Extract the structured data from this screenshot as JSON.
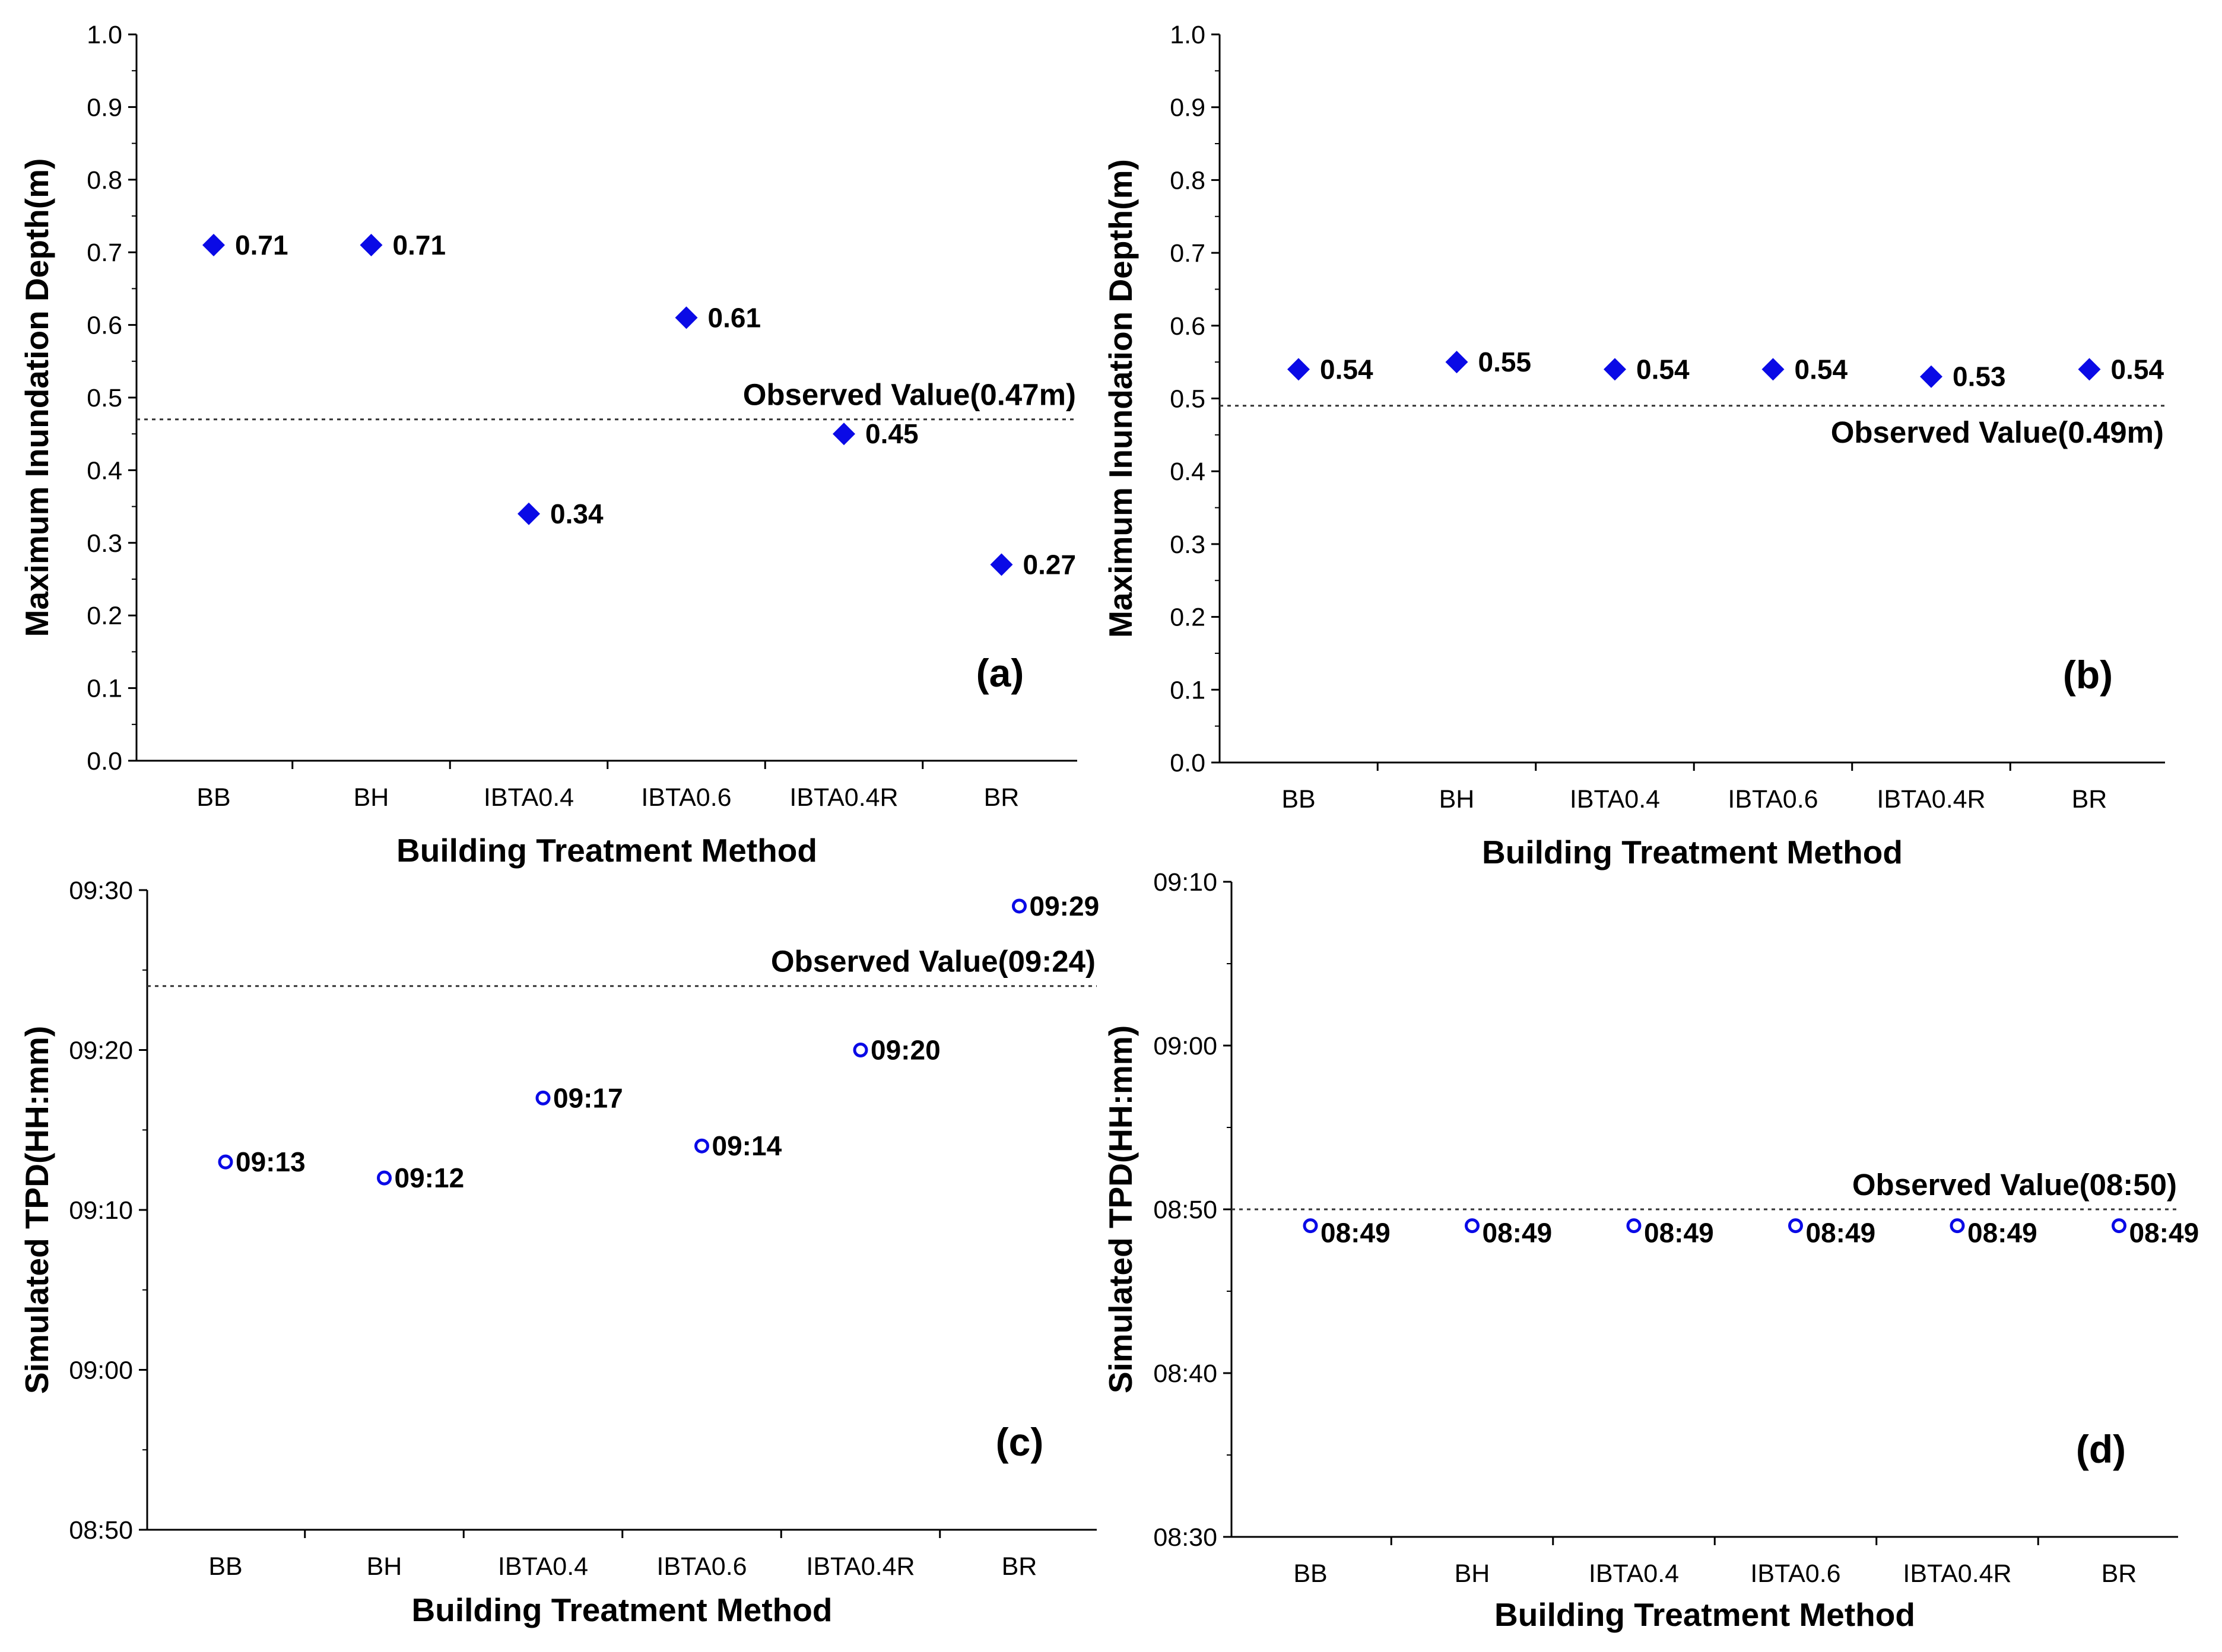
{
  "colors": {
    "marker": "#0a0ae6",
    "axis": "#000000",
    "reference_line": "#333333"
  },
  "chart_data": [
    {
      "id": "a",
      "type": "scatter",
      "panel_label": "(a)",
      "xlabel": "Building Treatment Method",
      "ylabel": "Maximum Inundation Depth(m)",
      "categories": [
        "BB",
        "BH",
        "IBTA0.4",
        "IBTA0.6",
        "IBTA0.4R",
        "BR"
      ],
      "values": [
        0.71,
        0.71,
        0.34,
        0.61,
        0.45,
        0.27
      ],
      "value_labels": [
        "0.71",
        "0.71",
        "0.34",
        "0.61",
        "0.45",
        "0.27"
      ],
      "ylim": [
        0.0,
        1.0
      ],
      "yticks": [
        0.0,
        0.1,
        0.2,
        0.3,
        0.4,
        0.5,
        0.6,
        0.7,
        0.8,
        0.9,
        1.0
      ],
      "ytick_labels": [
        "0.0",
        "0.1",
        "0.2",
        "0.3",
        "0.4",
        "0.5",
        "0.6",
        "0.7",
        "0.8",
        "0.9",
        "1.0"
      ],
      "marker": "diamond-filled",
      "reference": {
        "value": 0.47,
        "label": "Observed Value(0.47m)",
        "label_position": "above-right"
      }
    },
    {
      "id": "b",
      "type": "scatter",
      "panel_label": "(b)",
      "xlabel": "Building Treatment Method",
      "ylabel": "Maximum Inundation Depth(m)",
      "categories": [
        "BB",
        "BH",
        "IBTA0.4",
        "IBTA0.6",
        "IBTA0.4R",
        "BR"
      ],
      "values": [
        0.54,
        0.55,
        0.54,
        0.54,
        0.53,
        0.54
      ],
      "value_labels": [
        "0.54",
        "0.55",
        "0.54",
        "0.54",
        "0.53",
        "0.54"
      ],
      "ylim": [
        0.0,
        1.0
      ],
      "yticks": [
        0.0,
        0.1,
        0.2,
        0.3,
        0.4,
        0.5,
        0.6,
        0.7,
        0.8,
        0.9,
        1.0
      ],
      "ytick_labels": [
        "0.0",
        "0.1",
        "0.2",
        "0.3",
        "0.4",
        "0.5",
        "0.6",
        "0.7",
        "0.8",
        "0.9",
        "1.0"
      ],
      "marker": "diamond-filled",
      "reference": {
        "value": 0.49,
        "label": "Observed Value(0.49m)",
        "label_position": "below-right"
      }
    },
    {
      "id": "c",
      "type": "scatter",
      "panel_label": "(c)",
      "xlabel": "Building Treatment Method",
      "ylabel": "Simulated TPD(HH:mm)",
      "categories": [
        "BB",
        "BH",
        "IBTA0.4",
        "IBTA0.6",
        "IBTA0.4R",
        "BR"
      ],
      "values": [
        553,
        552,
        557,
        554,
        560,
        569
      ],
      "value_unit": "minutes after 00:00",
      "value_labels": [
        "09:13",
        "09:12",
        "09:17",
        "09:14",
        "09:20",
        "09:29"
      ],
      "ylim": [
        530,
        570
      ],
      "yticks": [
        530,
        540,
        550,
        560,
        570
      ],
      "ytick_labels": [
        "08:50",
        "09:00",
        "09:10",
        "09:20",
        "09:30"
      ],
      "marker": "circle-open",
      "reference": {
        "value": 564,
        "label": "Observed Value(09:24)",
        "label_position": "above-right"
      }
    },
    {
      "id": "d",
      "type": "scatter",
      "panel_label": "(d)",
      "xlabel": "Building Treatment Method",
      "ylabel": "Simulated TPD(HH:mm)",
      "categories": [
        "BB",
        "BH",
        "IBTA0.4",
        "IBTA0.6",
        "IBTA0.4R",
        "BR"
      ],
      "values": [
        529,
        529,
        529,
        529,
        529,
        529
      ],
      "value_unit": "minutes after 00:00",
      "value_labels": [
        "08:49",
        "08:49",
        "08:49",
        "08:49",
        "08:49",
        "08:49"
      ],
      "ylim": [
        510,
        550
      ],
      "yticks": [
        510,
        520,
        530,
        540,
        550
      ],
      "ytick_labels": [
        "08:30",
        "08:40",
        "08:50",
        "09:00",
        "09:10"
      ],
      "marker": "circle-open",
      "reference": {
        "value": 530,
        "label": "Observed Value(08:50)",
        "label_position": "above-right"
      }
    }
  ]
}
